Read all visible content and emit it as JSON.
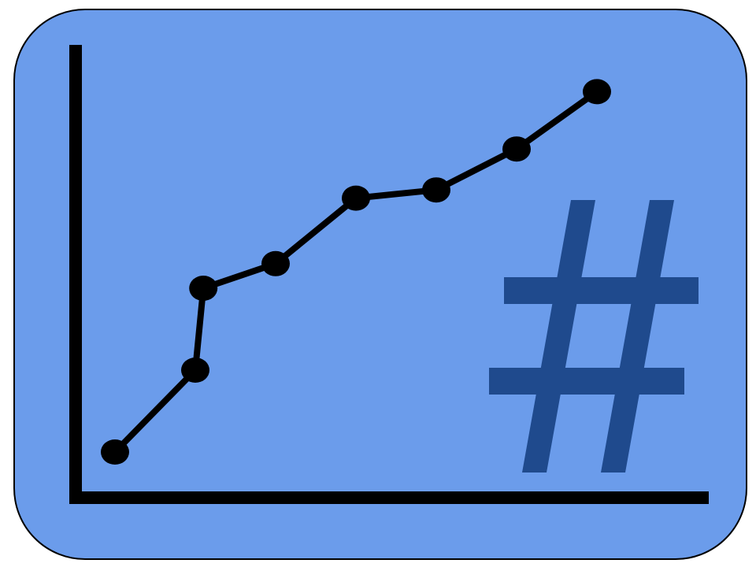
{
  "colors": {
    "panel_fill": "#6b9ceb",
    "panel_stroke": "#000000",
    "axis": "#000000",
    "series_line": "#000000",
    "markers": "#000000",
    "hash_symbol": "#1f4a8d"
  },
  "icons": {
    "panel": "rounded-panel",
    "chart": "line-chart-icon",
    "symbol": "hash-icon"
  },
  "chart_data": {
    "type": "line",
    "title": "",
    "xlabel": "",
    "ylabel": "",
    "axes_labeled": false,
    "grid": false,
    "legend": "none",
    "series": [
      {
        "x": [
          1,
          2,
          2.1,
          3,
          4,
          5,
          6,
          7
        ],
        "y": [
          1,
          2,
          3,
          3.3,
          4.1,
          4.2,
          4.7,
          5.4
        ]
      }
    ]
  }
}
